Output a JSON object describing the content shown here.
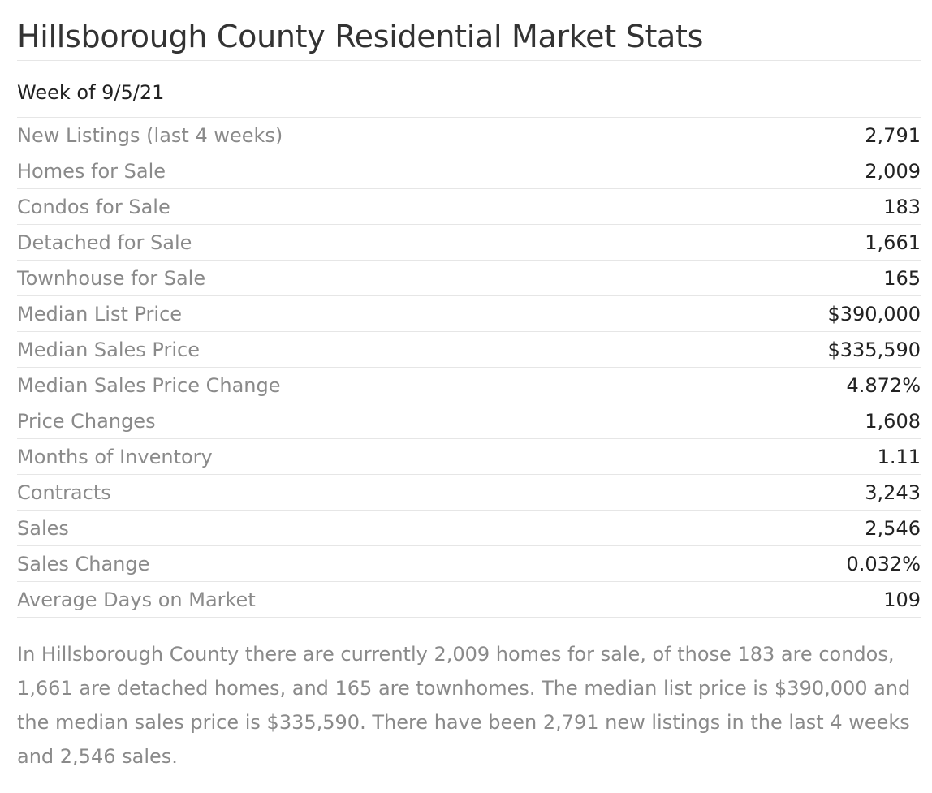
{
  "header": {
    "title": "Hillsborough County Residential Market Stats",
    "week": "Week of 9/5/21"
  },
  "stats": [
    {
      "label": "New Listings (last 4 weeks)",
      "value": "2,791"
    },
    {
      "label": "Homes for Sale",
      "value": "2,009"
    },
    {
      "label": "Condos for Sale",
      "value": "183"
    },
    {
      "label": "Detached for Sale",
      "value": "1,661"
    },
    {
      "label": "Townhouse for Sale",
      "value": "165"
    },
    {
      "label": "Median List Price",
      "value": "$390,000"
    },
    {
      "label": "Median Sales Price",
      "value": "$335,590"
    },
    {
      "label": "Median Sales Price Change",
      "value": "4.872%"
    },
    {
      "label": "Price Changes",
      "value": "1,608"
    },
    {
      "label": "Months of Inventory",
      "value": "1.11"
    },
    {
      "label": "Contracts",
      "value": "3,243"
    },
    {
      "label": "Sales",
      "value": "2,546"
    },
    {
      "label": "Sales Change",
      "value": "0.032%"
    },
    {
      "label": "Average Days on Market",
      "value": "109"
    }
  ],
  "summary": "In Hillsborough County there are currently 2,009 homes for sale, of those 183 are condos, 1,661 are detached homes, and 165 are townhomes. The median list price is $390,000 and the median sales price is $335,590. There have been 2,791 new listings in the last 4 weeks and 2,546 sales."
}
